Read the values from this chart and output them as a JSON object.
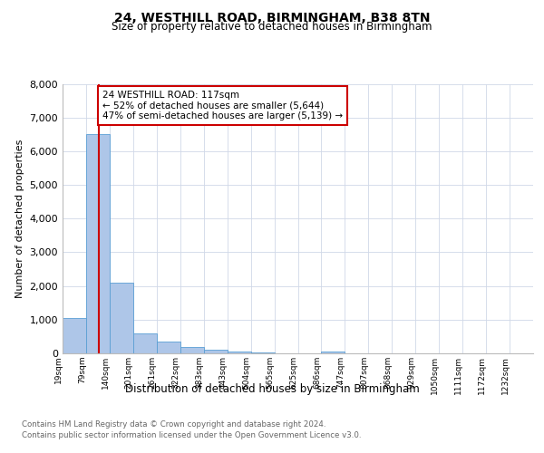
{
  "title1": "24, WESTHILL ROAD, BIRMINGHAM, B38 8TN",
  "title2": "Size of property relative to detached houses in Birmingham",
  "xlabel": "Distribution of detached houses by size in Birmingham",
  "ylabel": "Number of detached properties",
  "annotation_line1": "24 WESTHILL ROAD: 117sqm",
  "annotation_line2": "← 52% of detached houses are smaller (5,644)",
  "annotation_line3": "47% of semi-detached houses are larger (5,139) →",
  "bin_labels": [
    "19sqm",
    "79sqm",
    "140sqm",
    "201sqm",
    "261sqm",
    "322sqm",
    "383sqm",
    "443sqm",
    "504sqm",
    "565sqm",
    "625sqm",
    "686sqm",
    "747sqm",
    "807sqm",
    "868sqm",
    "929sqm",
    "1050sqm",
    "1111sqm",
    "1172sqm",
    "1232sqm"
  ],
  "bar_heights": [
    1050,
    6500,
    2100,
    600,
    350,
    175,
    100,
    50,
    20,
    10,
    5,
    50,
    5,
    5,
    5,
    5,
    5,
    5,
    5,
    0
  ],
  "bar_color": "#aec6e8",
  "bar_edge_color": "#5a9fd4",
  "vline_color": "#cc0000",
  "vline_bar_index": 1,
  "annotation_box_color": "#cc0000",
  "ylim": [
    0,
    8000
  ],
  "yticks": [
    0,
    1000,
    2000,
    3000,
    4000,
    5000,
    6000,
    7000,
    8000
  ],
  "bg_color": "#ffffff",
  "grid_color": "#d0d8e8",
  "footer1": "Contains HM Land Registry data © Crown copyright and database right 2024.",
  "footer2": "Contains public sector information licensed under the Open Government Licence v3.0."
}
